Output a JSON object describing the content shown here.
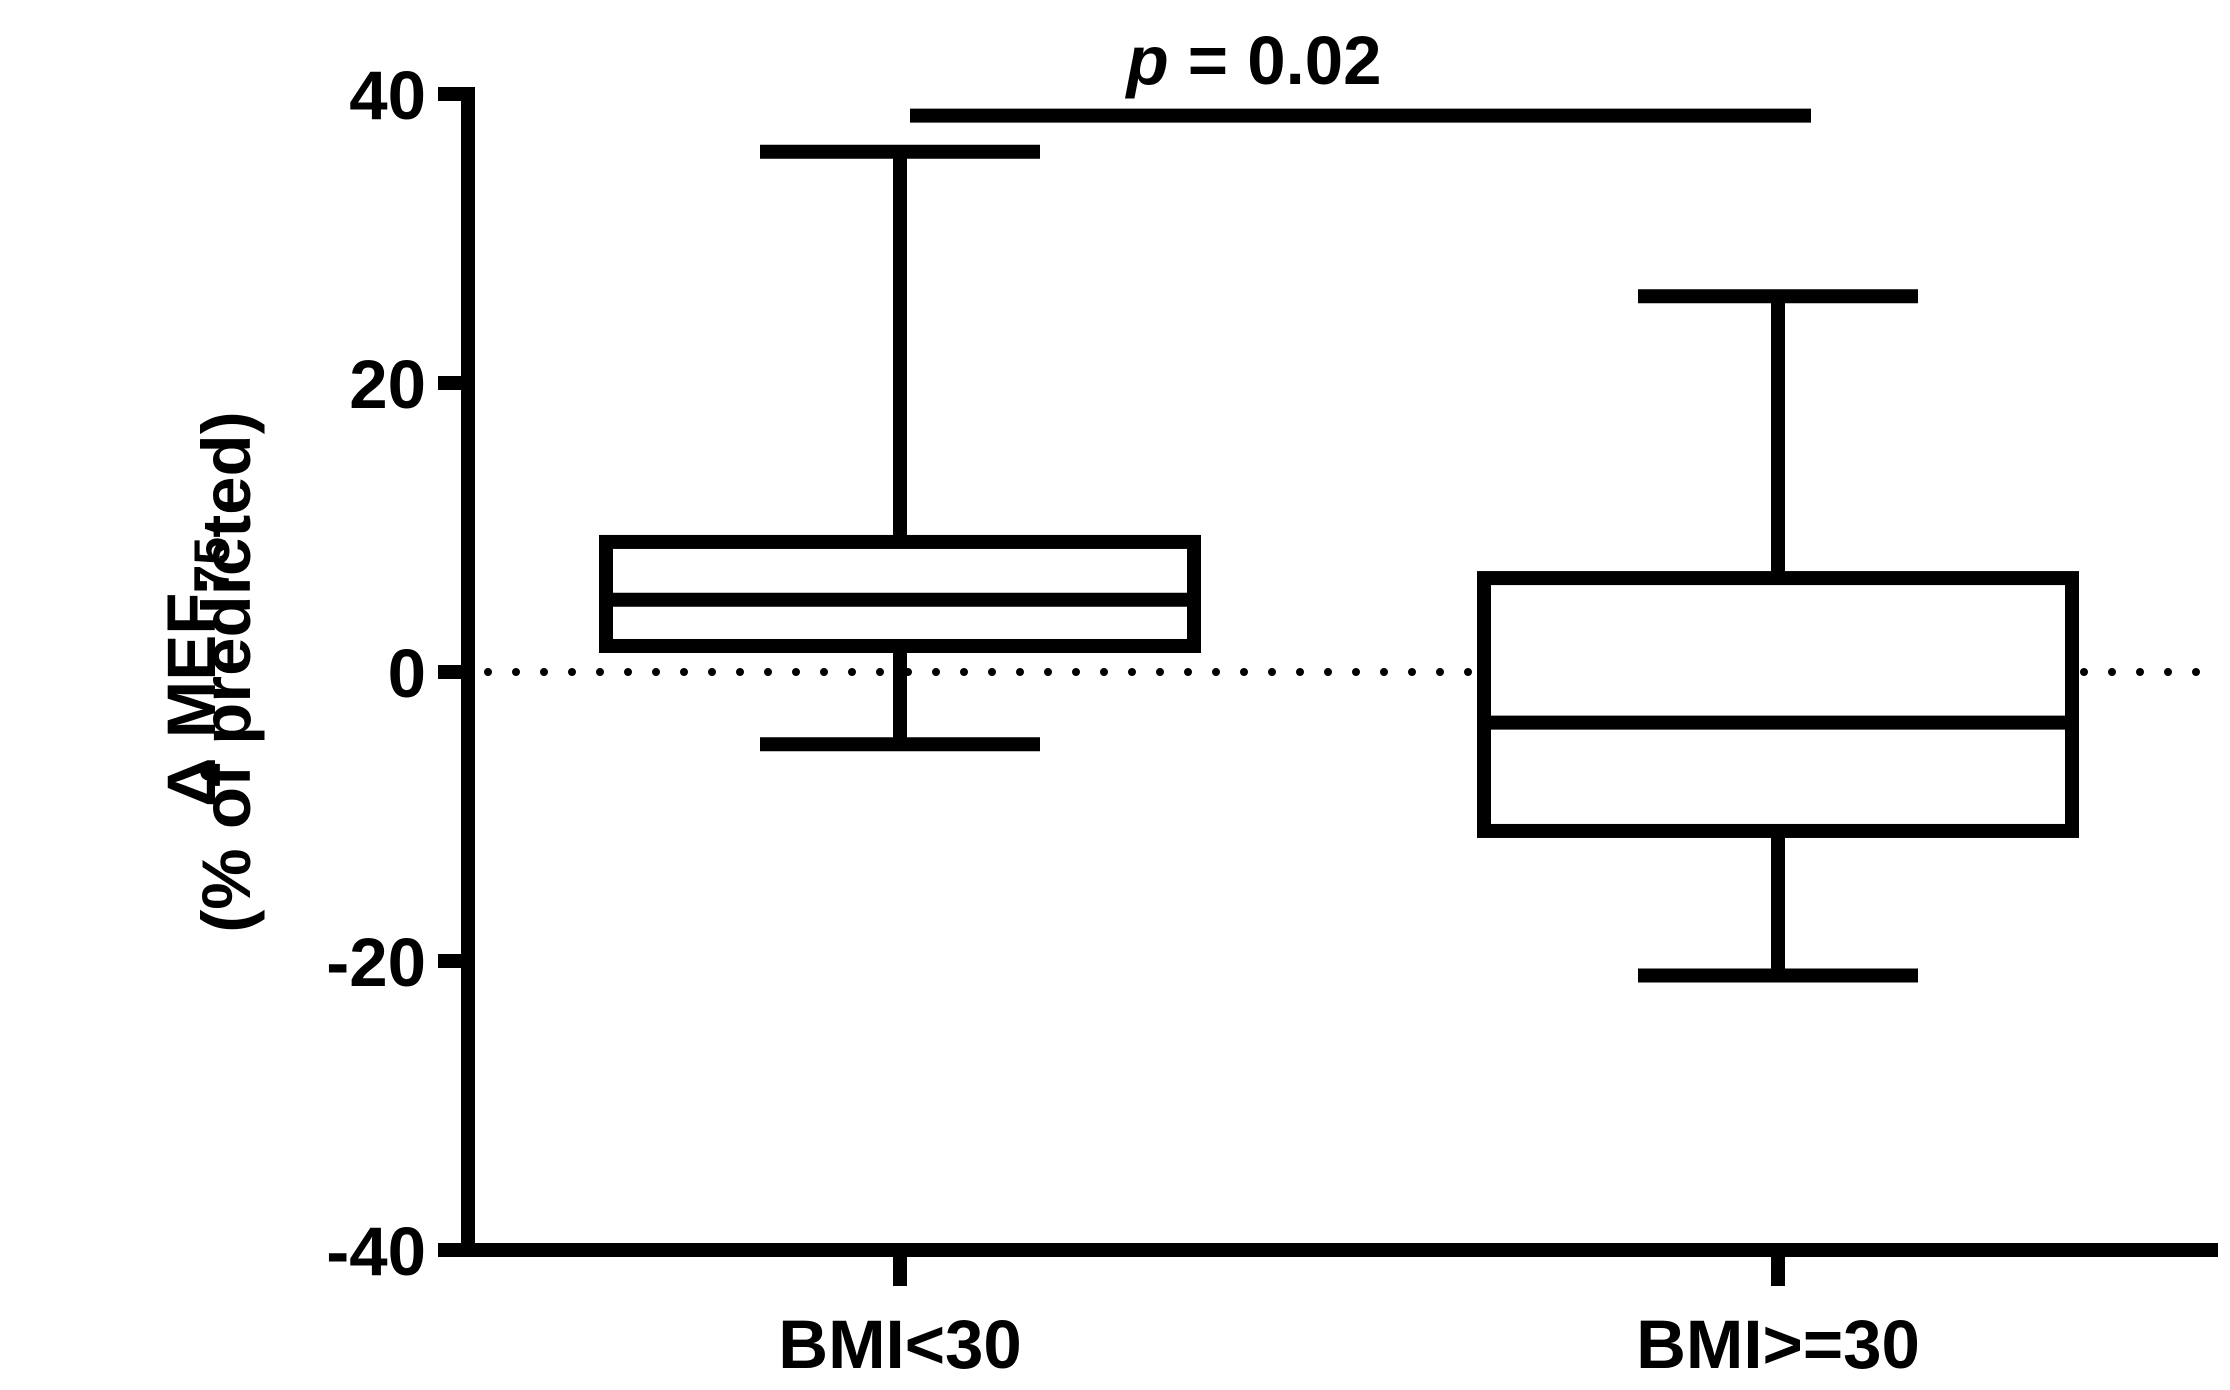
{
  "chart_data": {
    "type": "box",
    "ylabel": {
      "main": "Δ MEF",
      "subscript": "75",
      "line2": "(% of predicted)"
    },
    "categories": [
      "BMI<30",
      "BMI>=30"
    ],
    "boxes": [
      {
        "min": -5,
        "q1": 1.8,
        "median": 5,
        "q3": 9,
        "max": 36
      },
      {
        "min": -21,
        "q1": -11,
        "median": -3.5,
        "q3": 6.5,
        "max": 26
      }
    ],
    "color": "#000000",
    "ylim": [
      -40,
      40
    ],
    "yticks": [
      -40,
      -20,
      0,
      20,
      40
    ],
    "reference_line": 0,
    "significance": {
      "y": 38.5,
      "italic": "p",
      "text": "= 0.02"
    }
  }
}
